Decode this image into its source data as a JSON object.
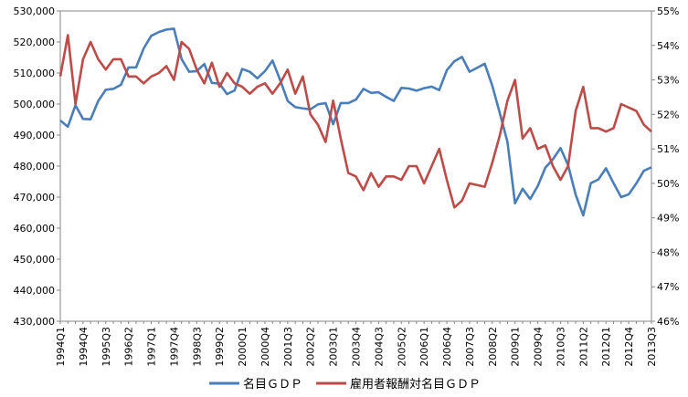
{
  "chart_data": {
    "type": "line",
    "title": "",
    "legend_position": "bottom",
    "grid": false,
    "x_labels": [
      "1994Q1",
      "1994Q4",
      "1995Q3",
      "1996Q2",
      "1997Q1",
      "1997Q4",
      "1998Q3",
      "1999Q2",
      "2000Q1",
      "2000Q4",
      "2001Q3",
      "2002Q2",
      "2003Q1",
      "2003Q4",
      "2004Q3",
      "2005Q2",
      "2006Q1",
      "2006Q4",
      "2007Q3",
      "2008Q2",
      "2009Q1",
      "2009Q4",
      "2010Q3",
      "2011Q2",
      "2012Q1",
      "2012Q4",
      "2013Q3"
    ],
    "y_left": {
      "min": 430000,
      "max": 530000,
      "ticks": [
        "430,000",
        "440,000",
        "450,000",
        "460,000",
        "470,000",
        "480,000",
        "490,000",
        "500,000",
        "510,000",
        "520,000",
        "530,000"
      ]
    },
    "y_right": {
      "min": 46,
      "max": 55,
      "ticks": [
        "46%",
        "47%",
        "48%",
        "49%",
        "50%",
        "51%",
        "52%",
        "53%",
        "54%",
        "55%"
      ]
    },
    "series": [
      {
        "name": "名目ＧＤＰ",
        "axis": "left",
        "color": "#4a7ebb",
        "values": [
          494700,
          492700,
          499600,
          495200,
          495100,
          501000,
          504600,
          504900,
          506200,
          511800,
          511800,
          517900,
          522000,
          523200,
          524000,
          524300,
          514500,
          510400,
          510600,
          512900,
          506800,
          506600,
          503200,
          504400,
          511300,
          510400,
          508300,
          510600,
          514000,
          507800,
          501000,
          499000,
          498600,
          498300,
          499900,
          500300,
          493500,
          500300,
          500300,
          501400,
          504900,
          503600,
          503800,
          502300,
          501000,
          505200,
          505000,
          504300,
          505100,
          505600,
          504500,
          510900,
          513800,
          515200,
          510400,
          511700,
          513000,
          505900,
          497000,
          487800,
          468000,
          472700,
          469400,
          473600,
          479500,
          482200,
          485800,
          480300,
          470800,
          464100,
          474500,
          475700,
          479300,
          474500,
          470000,
          470900,
          474400,
          478500,
          479600
        ]
      },
      {
        "name": "雇用者報酬対名目ＧＤＰ",
        "axis": "right",
        "color": "#be4b48",
        "values": [
          53.1,
          54.3,
          52.3,
          53.6,
          54.1,
          53.6,
          53.3,
          53.6,
          53.6,
          53.1,
          53.1,
          52.9,
          53.1,
          53.2,
          53.4,
          53.0,
          54.1,
          53.9,
          53.3,
          52.9,
          53.5,
          52.8,
          53.2,
          52.9,
          52.8,
          52.6,
          52.8,
          52.9,
          52.6,
          52.9,
          53.3,
          52.6,
          53.1,
          52.0,
          51.7,
          51.2,
          52.4,
          51.3,
          50.3,
          50.2,
          49.8,
          50.3,
          49.9,
          50.2,
          50.2,
          50.1,
          50.5,
          50.5,
          50.0,
          50.5,
          51.0,
          50.1,
          49.3,
          49.5,
          50.0,
          49.95,
          49.9,
          50.6,
          51.4,
          52.4,
          53.0,
          51.3,
          51.6,
          51.0,
          51.1,
          50.5,
          50.1,
          50.5,
          52.1,
          52.8,
          51.6,
          51.6,
          51.5,
          51.6,
          52.3,
          52.2,
          52.1,
          51.7,
          51.5
        ]
      }
    ]
  }
}
